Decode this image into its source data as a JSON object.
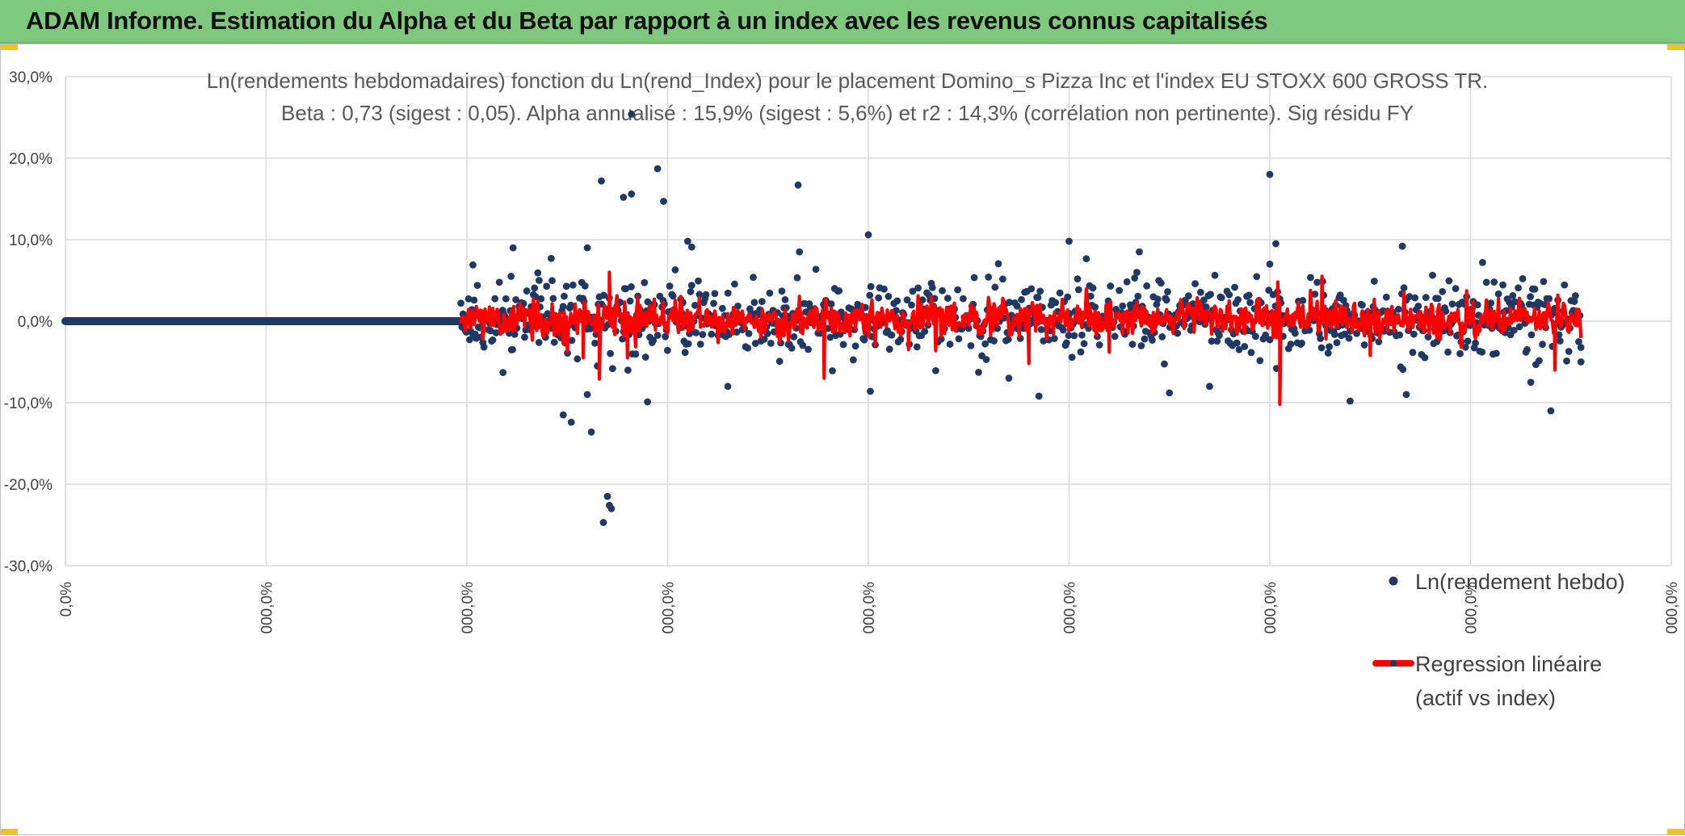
{
  "header": {
    "title": "ADAM Informe. Estimation du Alpha et du Beta par rapport à un index avec les revenus connus capitalisés"
  },
  "colors": {
    "banner": "#7fc97f",
    "scatter": "#203864",
    "regression": "#ff0000",
    "grid": "#d9d9d9"
  },
  "chart_data": {
    "type": "scatter",
    "title": "Ln(rendements hebdomadaires) fonction du Ln(rend_Index) pour le placement Domino_s Pizza Inc et l'index EU STOXX 600 GROSS TR.",
    "subtitle": "Beta : 0,73 (sigest : 0,05).  Alpha annualisé : 15,9% (sigest : 5,6%) et r2 : 14,3% (corrélation non pertinente). Sig résidu FY",
    "xlabel": "",
    "ylabel": "",
    "ylim": [
      -0.3,
      0.3
    ],
    "xlim": [
      0,
      8
    ],
    "y_ticks": [
      "30,0%",
      "20,0%",
      "10,0%",
      "0,0%",
      "-10,0%",
      "-20,0%",
      "-30,0%"
    ],
    "x_ticks": [
      "0,0%",
      "000,0%",
      "000,0%",
      "000,0%",
      "000,0%",
      "000,0%",
      "000,0%",
      "000,0%",
      "000,0%"
    ],
    "grid": true,
    "legend_position": "right",
    "series": [
      {
        "name": "Ln(rendement hebdo)",
        "kind": "points",
        "flat_zero_range": [
          0,
          1.97
        ],
        "data_range": [
          1.97,
          7.55
        ],
        "n_points": 1020,
        "base_spread": 0.026,
        "extremes": [
          [
            2.67,
            0.172
          ],
          [
            2.78,
            0.152
          ],
          [
            2.82,
            0.156
          ],
          [
            2.82,
            0.254
          ],
          [
            2.95,
            0.187
          ],
          [
            2.62,
            -0.136
          ],
          [
            2.68,
            -0.247
          ],
          [
            2.7,
            -0.215
          ],
          [
            2.71,
            -0.226
          ],
          [
            2.72,
            -0.23
          ],
          [
            2.65,
            -0.055
          ],
          [
            2.98,
            0.147
          ],
          [
            3.1,
            0.098
          ],
          [
            3.12,
            0.091
          ],
          [
            3.65,
            0.167
          ],
          [
            4.0,
            0.106
          ],
          [
            2.48,
            -0.115
          ],
          [
            2.52,
            -0.124
          ],
          [
            2.36,
            0.05
          ],
          [
            2.42,
            0.077
          ],
          [
            2.6,
            0.09
          ],
          [
            6.0,
            0.18
          ],
          [
            6.03,
            0.095
          ],
          [
            6.0,
            0.07
          ],
          [
            5.0,
            0.098
          ],
          [
            4.01,
            -0.086
          ],
          [
            5.35,
            0.085
          ],
          [
            6.66,
            0.092
          ],
          [
            7.4,
            -0.11
          ],
          [
            2.22,
            0.055
          ],
          [
            2.18,
            -0.063
          ],
          [
            2.6,
            -0.09
          ],
          [
            2.9,
            -0.099
          ],
          [
            3.3,
            -0.08
          ],
          [
            4.7,
            -0.07
          ],
          [
            4.85,
            -0.092
          ],
          [
            5.5,
            -0.088
          ],
          [
            5.7,
            -0.08
          ],
          [
            6.4,
            -0.098
          ],
          [
            6.68,
            -0.09
          ],
          [
            7.3,
            -0.075
          ],
          [
            7.55,
            -0.05
          ],
          [
            2.23,
            0.09
          ],
          [
            2.03,
            0.069
          ],
          [
            7.06,
            0.072
          ]
        ]
      },
      {
        "name": "Regression linéaire",
        "legend_lines": [
          "Regression linéaire",
          "(actif vs index)"
        ],
        "kind": "line",
        "data_range": [
          1.97,
          7.55
        ],
        "beta": 0.73,
        "spikes": [
          [
            2.66,
            -0.071
          ],
          [
            2.71,
            0.06
          ],
          [
            2.8,
            -0.045
          ],
          [
            3.78,
            -0.07
          ],
          [
            4.8,
            -0.052
          ],
          [
            6.05,
            -0.102
          ],
          [
            6.04,
            0.048
          ],
          [
            6.26,
            0.055
          ],
          [
            7.42,
            -0.06
          ],
          [
            2.58,
            -0.045
          ],
          [
            4.2,
            -0.035
          ],
          [
            6.5,
            -0.042
          ],
          [
            5.2,
            -0.038
          ]
        ]
      }
    ]
  }
}
